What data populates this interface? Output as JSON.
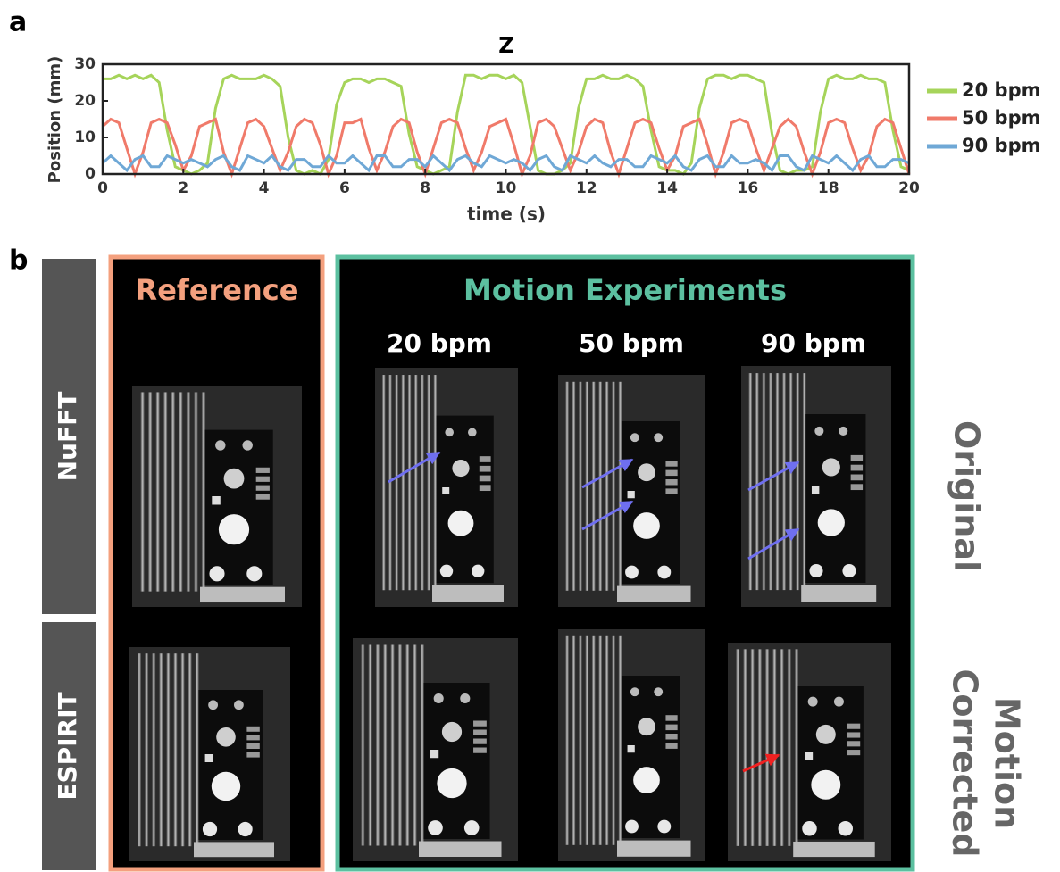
{
  "chart_data": {
    "type": "line",
    "panel_label": "a",
    "title": "Z",
    "xlabel": "time (s)",
    "ylabel": "Position (mm)",
    "x": [
      0,
      0.2,
      0.4,
      0.6,
      0.8,
      1,
      1.2,
      1.4,
      1.6,
      1.8,
      2,
      2.2,
      2.4,
      2.6,
      2.8,
      3,
      3.2,
      3.4,
      3.6,
      3.8,
      4,
      4.2,
      4.4,
      4.6,
      4.8,
      5,
      5.2,
      5.4,
      5.6,
      5.8,
      6,
      6.2,
      6.4,
      6.6,
      6.8,
      7,
      7.2,
      7.4,
      7.6,
      7.8,
      8,
      8.2,
      8.4,
      8.6,
      8.8,
      9,
      9.2,
      9.4,
      9.6,
      9.8,
      10,
      10.2,
      10.4,
      10.6,
      10.8,
      11,
      11.2,
      11.4,
      11.6,
      11.8,
      12,
      12.2,
      12.4,
      12.6,
      12.8,
      13,
      13.2,
      13.4,
      13.6,
      13.8,
      14,
      14.2,
      14.4,
      14.6,
      14.8,
      15,
      15.2,
      15.4,
      15.6,
      15.8,
      16,
      16.2,
      16.4,
      16.6,
      16.8,
      17,
      17.2,
      17.4,
      17.6,
      17.8,
      18,
      18.2,
      18.4,
      18.6,
      18.8,
      19,
      19.2,
      19.4,
      19.6,
      19.8,
      20
    ],
    "series": [
      {
        "name": "20 bpm",
        "color": "#a6d45a",
        "values": [
          26,
          26,
          27,
          26,
          27,
          26,
          27,
          25,
          12,
          2,
          1,
          0,
          1,
          3,
          18,
          26,
          27,
          26,
          26,
          26,
          27,
          26,
          24,
          10,
          1,
          0,
          1,
          0,
          4,
          19,
          25,
          26,
          26,
          25,
          26,
          26,
          25,
          24,
          11,
          2,
          1,
          0,
          1,
          2,
          17,
          27,
          27,
          26,
          27,
          27,
          26,
          27,
          25,
          13,
          1,
          0,
          0,
          1,
          3,
          18,
          26,
          26,
          27,
          26,
          26,
          27,
          26,
          24,
          12,
          2,
          1,
          1,
          0,
          3,
          18,
          26,
          27,
          27,
          26,
          27,
          27,
          26,
          25,
          11,
          1,
          0,
          1,
          1,
          2,
          17,
          26,
          27,
          26,
          26,
          27,
          26,
          26,
          25,
          12,
          2,
          1
        ]
      },
      {
        "name": "50 bpm",
        "color": "#f07a6a",
        "values": [
          13,
          15,
          14,
          7,
          0,
          6,
          14,
          15,
          14,
          8,
          1,
          5,
          13,
          14,
          15,
          6,
          0,
          7,
          14,
          15,
          13,
          7,
          1,
          6,
          13,
          15,
          14,
          8,
          0,
          5,
          14,
          14,
          15,
          7,
          1,
          6,
          13,
          15,
          14,
          6,
          0,
          7,
          14,
          15,
          14,
          7,
          1,
          6,
          13,
          14,
          15,
          8,
          0,
          5,
          14,
          15,
          13,
          7,
          1,
          6,
          13,
          15,
          14,
          6,
          0,
          7,
          14,
          15,
          14,
          7,
          1,
          5,
          13,
          14,
          15,
          8,
          0,
          6,
          14,
          15,
          14,
          7,
          1,
          7,
          13,
          15,
          13,
          6,
          0,
          6,
          14,
          15,
          14,
          7,
          1,
          5,
          13,
          15,
          14,
          7,
          0
        ]
      },
      {
        "name": "90 bpm",
        "color": "#6fa8d6",
        "values": [
          3,
          5,
          3,
          1,
          4,
          5,
          2,
          2,
          5,
          4,
          3,
          4,
          3,
          2,
          4,
          5,
          2,
          1,
          5,
          4,
          3,
          5,
          2,
          1,
          4,
          4,
          2,
          2,
          5,
          3,
          3,
          5,
          3,
          1,
          5,
          5,
          2,
          2,
          4,
          4,
          2,
          5,
          3,
          1,
          4,
          5,
          3,
          2,
          5,
          4,
          3,
          4,
          3,
          1,
          4,
          5,
          2,
          1,
          5,
          4,
          3,
          5,
          3,
          2,
          4,
          4,
          2,
          2,
          5,
          4,
          3,
          5,
          2,
          1,
          4,
          5,
          2,
          2,
          5,
          3,
          3,
          4,
          3,
          1,
          5,
          5,
          2,
          1,
          5,
          4,
          3,
          5,
          3,
          1,
          4,
          5,
          2,
          2,
          4,
          4,
          3
        ]
      }
    ],
    "xlim": [
      0,
      20
    ],
    "xticks": [
      0,
      2,
      4,
      6,
      8,
      10,
      12,
      14,
      16,
      18,
      20
    ],
    "ylim": [
      0,
      30
    ],
    "yticks": [
      0,
      10,
      20,
      30
    ],
    "grid": false,
    "legend": "right-outside"
  },
  "panel_b": {
    "label": "b",
    "row_labels": [
      "NuFFT",
      "ESPIRIT"
    ],
    "reference_title": "Reference",
    "motion_title": "Motion Experiments",
    "columns": [
      "20 bpm",
      "50 bpm",
      "90 bpm"
    ],
    "original_label": "Original",
    "corrected_label": [
      "Motion",
      "Corrected"
    ]
  }
}
